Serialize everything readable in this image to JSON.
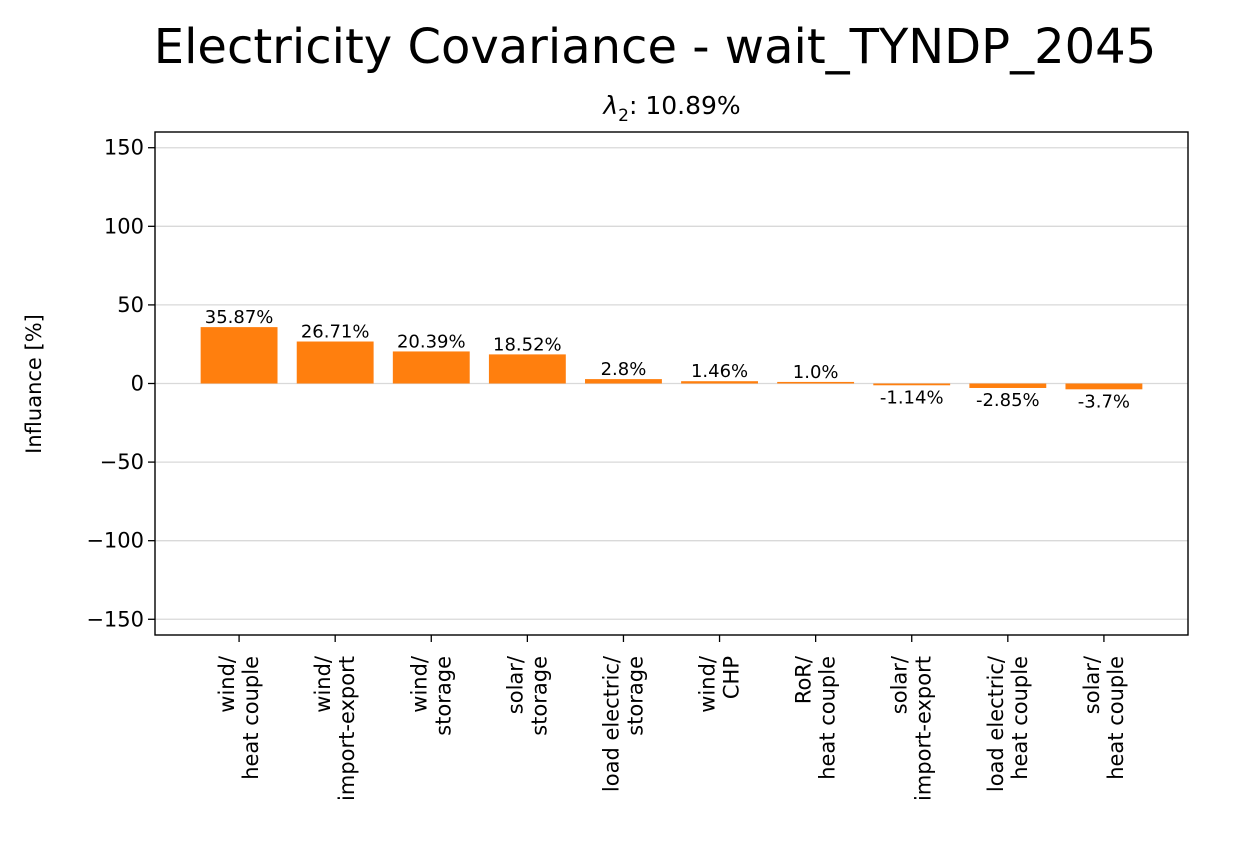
{
  "title": "Electricity Covariance - wait_TYNDP_2045",
  "subtitle": "λ",
  "subtitle_subscript": "2",
  "subtitle_value": ": 10.89%",
  "chart_data": {
    "type": "bar",
    "ylabel": "Influance [%]",
    "xlabel": "",
    "ylim": [
      -160,
      160
    ],
    "yticks": [
      150,
      100,
      50,
      0,
      -50,
      -100,
      -150
    ],
    "ytick_labels": [
      "150",
      "100",
      "50",
      "0",
      "−50",
      "−100",
      "−150"
    ],
    "grid": "horizontal",
    "bar_color": "#ff7f0e",
    "categories": [
      [
        "wind/",
        "heat couple"
      ],
      [
        "wind/",
        "import-export"
      ],
      [
        "wind/",
        "storage"
      ],
      [
        "solar/",
        "storage"
      ],
      [
        "load electric/",
        "storage"
      ],
      [
        "wind/",
        "CHP"
      ],
      [
        "RoR/",
        "heat couple"
      ],
      [
        "solar/",
        "import-export"
      ],
      [
        "load electric/",
        "heat couple"
      ],
      [
        "solar/",
        "heat couple"
      ]
    ],
    "values": [
      35.87,
      26.71,
      20.39,
      18.52,
      2.8,
      1.46,
      1.0,
      -1.14,
      -2.85,
      -3.7
    ],
    "data_labels": [
      "35.87%",
      "26.71%",
      "20.39%",
      "18.52%",
      "2.8%",
      "1.46%",
      "1.0%",
      "-1.14%",
      "-2.85%",
      "-3.7%"
    ]
  }
}
